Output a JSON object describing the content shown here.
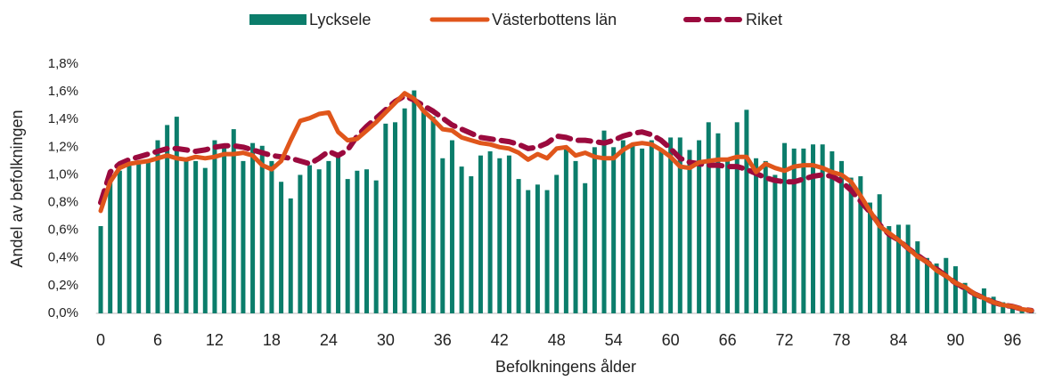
{
  "chart_data": {
    "type": "bar_lines",
    "xlabel": "Befolkningens ålder",
    "ylabel": "Andel av befolkningen",
    "categories": [
      "0",
      null,
      null,
      null,
      null,
      null,
      "6",
      null,
      null,
      null,
      null,
      null,
      "12",
      null,
      null,
      null,
      null,
      null,
      "18",
      null,
      null,
      null,
      null,
      null,
      "24",
      null,
      null,
      null,
      null,
      null,
      "30",
      null,
      null,
      null,
      null,
      null,
      "36",
      null,
      null,
      null,
      null,
      null,
      "42",
      null,
      null,
      null,
      null,
      null,
      "48",
      null,
      null,
      null,
      null,
      null,
      "54",
      null,
      null,
      null,
      null,
      null,
      "60",
      null,
      null,
      null,
      null,
      null,
      "66",
      null,
      null,
      null,
      null,
      null,
      "72",
      null,
      null,
      null,
      null,
      null,
      "78",
      null,
      null,
      null,
      null,
      null,
      "84",
      null,
      null,
      null,
      null,
      null,
      "90",
      null,
      null,
      null,
      null,
      null,
      "96",
      null,
      null
    ],
    "ylim": [
      0,
      1.8
    ],
    "yticks": [
      {
        "value": 0,
        "label": "0,0%"
      },
      {
        "value": 0.2,
        "label": "0,2%"
      },
      {
        "value": 0.4,
        "label": "0,4%"
      },
      {
        "value": 0.6,
        "label": "0,6%"
      },
      {
        "value": 0.8,
        "label": "0,8%"
      },
      {
        "value": 1.0,
        "label": "1,0%"
      },
      {
        "value": 1.2,
        "label": "1,2%"
      },
      {
        "value": 1.4,
        "label": "1,4%"
      },
      {
        "value": 1.6,
        "label": "1,6%"
      },
      {
        "value": 1.8,
        "label": "1,8%"
      }
    ],
    "series": [
      {
        "name": "Lycksele",
        "type": "bar",
        "color": "#0b7d6b",
        "values": [
          0.63,
          0.95,
          1.03,
          1.08,
          1.1,
          1.1,
          1.25,
          1.36,
          1.42,
          1.12,
          1.1,
          1.05,
          1.25,
          1.2,
          1.33,
          1.1,
          1.23,
          1.21,
          1.1,
          0.95,
          0.83,
          1.0,
          1.07,
          1.04,
          1.1,
          1.15,
          0.97,
          1.03,
          1.04,
          0.96,
          1.37,
          1.38,
          1.48,
          1.61,
          1.48,
          1.42,
          1.12,
          1.25,
          1.06,
          0.99,
          1.14,
          1.17,
          1.12,
          1.14,
          0.97,
          0.89,
          0.93,
          0.89,
          1.0,
          1.2,
          1.1,
          0.94,
          1.2,
          1.32,
          1.2,
          1.25,
          1.22,
          1.19,
          1.25,
          1.17,
          1.27,
          1.27,
          1.18,
          1.25,
          1.38,
          1.3,
          1.1,
          1.38,
          1.47,
          1.12,
          1.1,
          1.0,
          1.23,
          1.19,
          1.19,
          1.22,
          1.22,
          1.17,
          1.1,
          0.98,
          0.99,
          0.8,
          0.86,
          0.63,
          0.64,
          0.64,
          0.52,
          0.4,
          0.36,
          0.4,
          0.34,
          0.22,
          0.15,
          0.18,
          0.12,
          0.08,
          0.06,
          0.03,
          0.02
        ]
      },
      {
        "name": "Västerbottens län",
        "type": "line",
        "color": "#e0561b",
        "values": [
          0.74,
          0.95,
          1.05,
          1.08,
          1.09,
          1.1,
          1.12,
          1.14,
          1.12,
          1.11,
          1.13,
          1.12,
          1.13,
          1.15,
          1.15,
          1.16,
          1.14,
          1.07,
          1.04,
          1.1,
          1.25,
          1.39,
          1.41,
          1.44,
          1.45,
          1.31,
          1.25,
          1.26,
          1.32,
          1.38,
          1.45,
          1.52,
          1.59,
          1.55,
          1.46,
          1.4,
          1.33,
          1.32,
          1.27,
          1.25,
          1.23,
          1.22,
          1.2,
          1.19,
          1.16,
          1.11,
          1.15,
          1.12,
          1.19,
          1.2,
          1.14,
          1.16,
          1.13,
          1.12,
          1.12,
          1.18,
          1.22,
          1.23,
          1.22,
          1.18,
          1.13,
          1.06,
          1.05,
          1.09,
          1.1,
          1.11,
          1.11,
          1.13,
          1.13,
          1.02,
          1.08,
          1.05,
          1.03,
          1.06,
          1.07,
          1.07,
          1.05,
          1.02,
          1.0,
          0.95,
          0.85,
          0.74,
          0.63,
          0.58,
          0.53,
          0.47,
          0.41,
          0.37,
          0.31,
          0.27,
          0.22,
          0.19,
          0.14,
          0.11,
          0.08,
          0.06,
          0.05,
          0.03,
          0.02
        ]
      },
      {
        "name": "Riket",
        "type": "dashed",
        "color": "#9b0a3e",
        "values": [
          0.8,
          1.02,
          1.08,
          1.11,
          1.13,
          1.15,
          1.17,
          1.19,
          1.19,
          1.18,
          1.17,
          1.18,
          1.2,
          1.21,
          1.21,
          1.2,
          1.18,
          1.16,
          1.14,
          1.13,
          1.12,
          1.1,
          1.08,
          1.12,
          1.17,
          1.14,
          1.18,
          1.28,
          1.35,
          1.41,
          1.47,
          1.53,
          1.57,
          1.54,
          1.5,
          1.46,
          1.41,
          1.36,
          1.33,
          1.3,
          1.27,
          1.26,
          1.25,
          1.24,
          1.22,
          1.19,
          1.2,
          1.23,
          1.28,
          1.27,
          1.25,
          1.25,
          1.24,
          1.23,
          1.25,
          1.28,
          1.3,
          1.31,
          1.29,
          1.25,
          1.19,
          1.12,
          1.09,
          1.08,
          1.07,
          1.07,
          1.06,
          1.06,
          1.04,
          1.01,
          0.98,
          0.96,
          0.95,
          0.95,
          0.97,
          0.99,
          1.0,
          0.99,
          0.95,
          0.89,
          0.81,
          0.73,
          0.64,
          0.57,
          0.53,
          0.47,
          0.42,
          0.37,
          0.32,
          0.27,
          0.22,
          0.18,
          0.14,
          0.11,
          0.08,
          0.06,
          0.05,
          0.03,
          0.02
        ]
      }
    ]
  }
}
